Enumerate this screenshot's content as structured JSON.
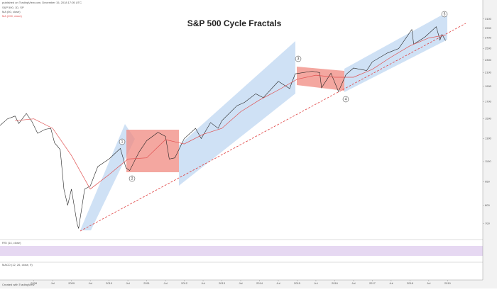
{
  "chart_data": {
    "type": "line",
    "title": "S&P 500 Cycle Fractals",
    "published": "published on TradingView.com, December 15, 2018 17:05 UTC",
    "legend_extra": "MA (50, close)",
    "rsi_label": "RSI (14, close)",
    "macd_label": "MACD (12, 26, close, 9)",
    "footer": "Created with TradingView",
    "annotations": [
      "1",
      "2",
      "3",
      "4",
      "5"
    ],
    "log_scale": true,
    "xlim": [
      2007.1,
      2019.9
    ],
    "ylim": [
      650,
      3380
    ],
    "xticks": [
      2008,
      {
        "value": 2008.5,
        "label": "Jul"
      },
      2009,
      {
        "value": 2009.5,
        "label": "Jul"
      },
      2010,
      {
        "value": 2010.5,
        "label": "Jul"
      },
      2011,
      {
        "value": 2011.5,
        "label": "Jul"
      },
      2012,
      {
        "value": 2012.5,
        "label": "Jul"
      },
      2013,
      {
        "value": 2013.5,
        "label": "Jul"
      },
      2014,
      {
        "value": 2014.5,
        "label": "Jul"
      },
      2015,
      {
        "value": 2015.5,
        "label": "Jul"
      },
      2016,
      {
        "value": 2016.5,
        "label": "Jul"
      },
      2017,
      {
        "value": 2017.5,
        "label": "Jul"
      },
      2018,
      {
        "value": 2018.5,
        "label": "Jul"
      },
      2019
    ],
    "yticks": [
      700,
      800,
      950,
      1100,
      1300,
      1500,
      1700,
      1900,
      2100,
      2300,
      2500,
      2700,
      2900,
      3100
    ],
    "series": [
      {
        "name": "S&P 500, 1D, SP",
        "color": "#222222",
        "x": [
          2007.1,
          2007.3,
          2007.5,
          2007.6,
          2007.8,
          2007.95,
          2008.1,
          2008.3,
          2008.45,
          2008.55,
          2008.7,
          2008.8,
          2008.9,
          2009.0,
          2009.15,
          2009.19,
          2009.35,
          2009.5,
          2009.7,
          2009.9,
          2010.0,
          2010.3,
          2010.45,
          2010.55,
          2010.8,
          2011.0,
          2011.3,
          2011.5,
          2011.6,
          2011.75,
          2012.0,
          2012.3,
          2012.45,
          2012.7,
          2012.9,
          2013.0,
          2013.4,
          2013.6,
          2013.9,
          2014.1,
          2014.5,
          2014.8,
          2014.95,
          2015.4,
          2015.6,
          2015.65,
          2015.9,
          2016.1,
          2016.3,
          2016.5,
          2016.85,
          2017.0,
          2017.4,
          2017.7,
          2018.05,
          2018.1,
          2018.4,
          2018.7,
          2018.8,
          2018.85,
          2018.95
        ],
        "values": [
          1430,
          1500,
          1530,
          1450,
          1560,
          1470,
          1350,
          1390,
          1400,
          1260,
          1200,
          900,
          800,
          900,
          700,
          676,
          900,
          920,
          1060,
          1100,
          1120,
          1210,
          1050,
          1030,
          1180,
          1280,
          1360,
          1320,
          1120,
          1130,
          1300,
          1400,
          1300,
          1460,
          1400,
          1480,
          1650,
          1690,
          1800,
          1750,
          1970,
          1870,
          2080,
          2120,
          2100,
          1880,
          2090,
          1830,
          2070,
          2170,
          2130,
          2270,
          2420,
          2500,
          2870,
          2580,
          2720,
          2930,
          2660,
          2770,
          2650
        ]
      },
      {
        "name": "MA (200, close)",
        "color": "#e05050",
        "x": [
          2007.5,
          2008.0,
          2008.5,
          2009.0,
          2009.5,
          2010.0,
          2010.5,
          2011.0,
          2011.5,
          2012.0,
          2012.5,
          2013.0,
          2013.5,
          2014.0,
          2014.5,
          2015.0,
          2015.5,
          2016.0,
          2016.5,
          2017.0,
          2017.5,
          2018.0,
          2018.5,
          2018.95
        ],
        "values": [
          1480,
          1500,
          1400,
          1150,
          900,
          1000,
          1120,
          1130,
          1290,
          1250,
          1340,
          1400,
          1580,
          1720,
          1850,
          2000,
          2060,
          2030,
          2030,
          2150,
          2350,
          2550,
          2700,
          2760
        ]
      }
    ]
  }
}
